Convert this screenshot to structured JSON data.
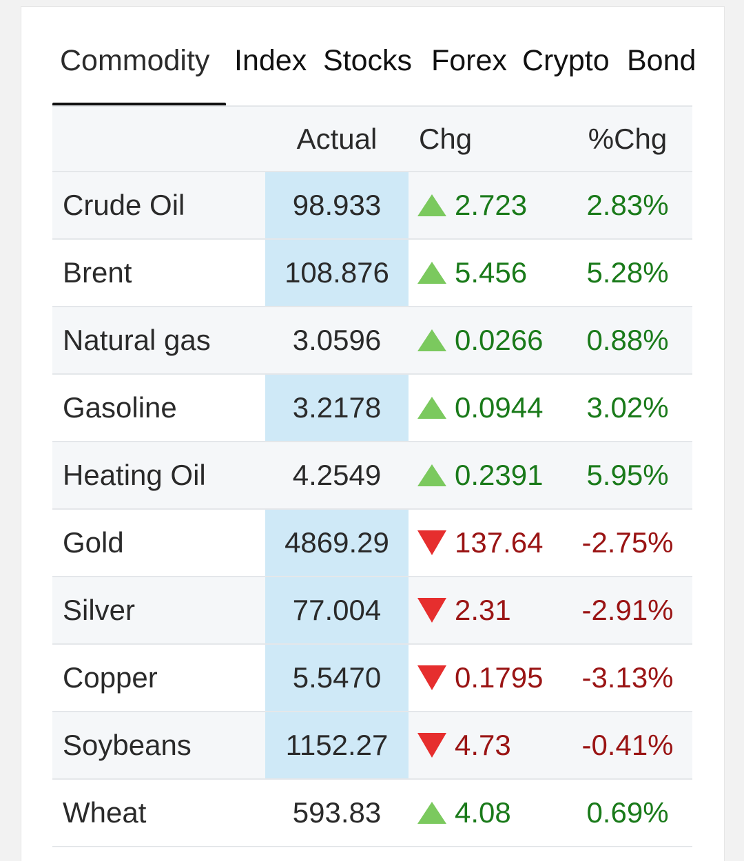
{
  "tabs": [
    {
      "label": "Commodity",
      "active": true
    },
    {
      "label": "Index",
      "active": false
    },
    {
      "label": "Stocks",
      "active": false
    },
    {
      "label": "Forex",
      "active": false
    },
    {
      "label": "Crypto",
      "active": false
    },
    {
      "label": "Bond",
      "active": false
    }
  ],
  "table": {
    "headers": {
      "name": "",
      "actual": "Actual",
      "chg": "Chg",
      "pct": "%Chg"
    },
    "rows": [
      {
        "name": "Crude Oil",
        "actual": "98.933",
        "chg": "2.723",
        "pct": "2.83%",
        "direction": "up",
        "highlight": true
      },
      {
        "name": "Brent",
        "actual": "108.876",
        "chg": "5.456",
        "pct": "5.28%",
        "direction": "up",
        "highlight": true
      },
      {
        "name": "Natural gas",
        "actual": "3.0596",
        "chg": "0.0266",
        "pct": "0.88%",
        "direction": "up",
        "highlight": false
      },
      {
        "name": "Gasoline",
        "actual": "3.2178",
        "chg": "0.0944",
        "pct": "3.02%",
        "direction": "up",
        "highlight": true
      },
      {
        "name": "Heating Oil",
        "actual": "4.2549",
        "chg": "0.2391",
        "pct": "5.95%",
        "direction": "up",
        "highlight": false
      },
      {
        "name": "Gold",
        "actual": "4869.29",
        "chg": "137.64",
        "pct": "-2.75%",
        "direction": "down",
        "highlight": true
      },
      {
        "name": "Silver",
        "actual": "77.004",
        "chg": "2.31",
        "pct": "-2.91%",
        "direction": "down",
        "highlight": true
      },
      {
        "name": "Copper",
        "actual": "5.5470",
        "chg": "0.1795",
        "pct": "-3.13%",
        "direction": "down",
        "highlight": true
      },
      {
        "name": "Soybeans",
        "actual": "1152.27",
        "chg": "4.73",
        "pct": "-0.41%",
        "direction": "down",
        "highlight": true
      },
      {
        "name": "Wheat",
        "actual": "593.83",
        "chg": "4.08",
        "pct": "0.69%",
        "direction": "up",
        "highlight": false
      }
    ]
  },
  "colors": {
    "up_text": "#1a7a1a",
    "down_text": "#9a1414",
    "up_arrow": "#7bc95e",
    "down_arrow": "#e62e2e",
    "highlight": "#cfe9f7"
  },
  "icons": {
    "up": "triangle-up-icon",
    "down": "triangle-down-icon"
  }
}
